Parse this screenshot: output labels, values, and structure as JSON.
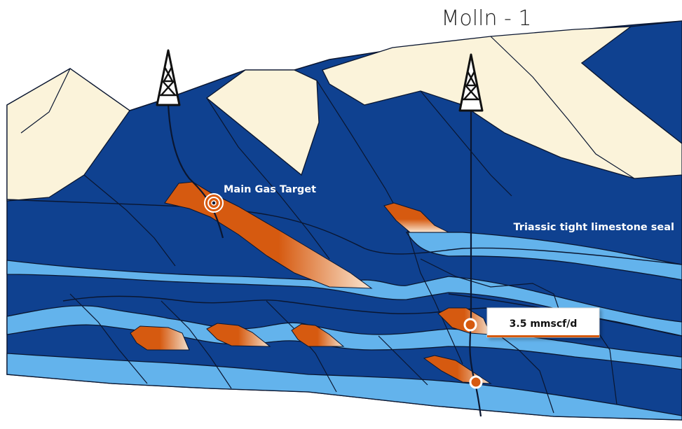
{
  "well_name": "Molln - 1",
  "labels": {
    "main_gas_target": "Main Gas Target",
    "seal": "Triassic tight limestone seal",
    "flow_rate": "3.5 mmscf/d"
  },
  "icons": {
    "rig_left": "drilling-rig-icon",
    "rig_right": "drilling-rig-icon",
    "target": "target-icon"
  },
  "colors": {
    "surface": "#fbf3da",
    "dark_blue": "#0f4190",
    "light_blue": "#63b3ec",
    "gas": "#d65a10",
    "outline": "#0a1630"
  }
}
